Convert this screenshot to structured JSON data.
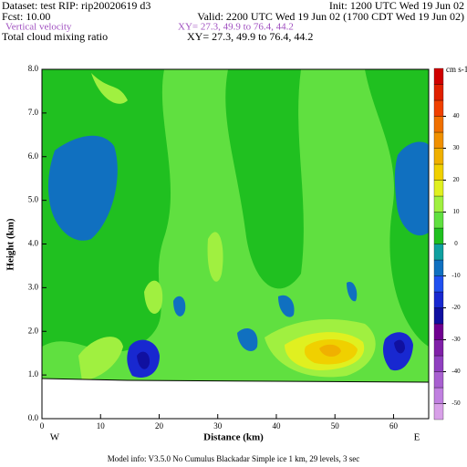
{
  "header": {
    "dataset": "Dataset: test   RIP: rip20020619 d3",
    "init": "Init: 1200 UTC Wed 19 Jun 02",
    "fcst": "Fcst:    10.00",
    "valid": "Valid: 2200 UTC Wed 19 Jun 02 (1700 CDT Wed 19 Jun 02)",
    "field1": "Vertical velocity",
    "field1_xy": "XY=  27.3, 49.9 to  76.4, 44.2",
    "field2": "Total cloud mixing ratio",
    "field2_xy": "XY=  27.3, 49.9 to  76.4, 44.2"
  },
  "chart_data": {
    "type": "contour",
    "xlabel": "Distance (km)",
    "ylabel": "Height (km)",
    "xlim": [
      0,
      66
    ],
    "xticks": [
      0,
      10,
      20,
      30,
      40,
      50,
      60
    ],
    "ylim": [
      0,
      8
    ],
    "yticks": [
      {
        "value": 0,
        "label": "0.0"
      },
      {
        "value": 1,
        "label": "1.0"
      },
      {
        "value": 2,
        "label": "2.0"
      },
      {
        "value": 3,
        "label": "3.0"
      },
      {
        "value": 4,
        "label": "4.0"
      },
      {
        "value": 5,
        "label": "5.0"
      },
      {
        "value": 6,
        "label": "6.0"
      },
      {
        "value": 7,
        "label": "7.0"
      },
      {
        "value": 8,
        "label": "8.0"
      }
    ],
    "x_end_labels": [
      "W",
      "E"
    ],
    "colorbar": {
      "unit": "cm s-1",
      "levels": [
        -55,
        -50,
        -45,
        -40,
        -35,
        -30,
        -25,
        -20,
        -15,
        -10,
        -5,
        0,
        5,
        10,
        15,
        20,
        25,
        30,
        35,
        40,
        45,
        50,
        55
      ],
      "colors": [
        "#d8a0e8",
        "#c080e0",
        "#a860d0",
        "#9040c0",
        "#8020a8",
        "#700090",
        "#1010a0",
        "#1828d0",
        "#2050f0",
        "#1070c0",
        "#10a0a0",
        "#20c020",
        "#60e040",
        "#a0f040",
        "#e0f020",
        "#f0d000",
        "#f0b000",
        "#f09000",
        "#f07000",
        "#f04000",
        "#e02000",
        "#d00000"
      ],
      "ticks": [
        -50,
        -40,
        -30,
        -20,
        -10,
        0,
        10,
        20,
        30,
        40
      ]
    }
  },
  "footer": "Model info: V3.5.0 No Cumulus Blackadar  Simple ice     1 km,  29 levels,    3 sec"
}
